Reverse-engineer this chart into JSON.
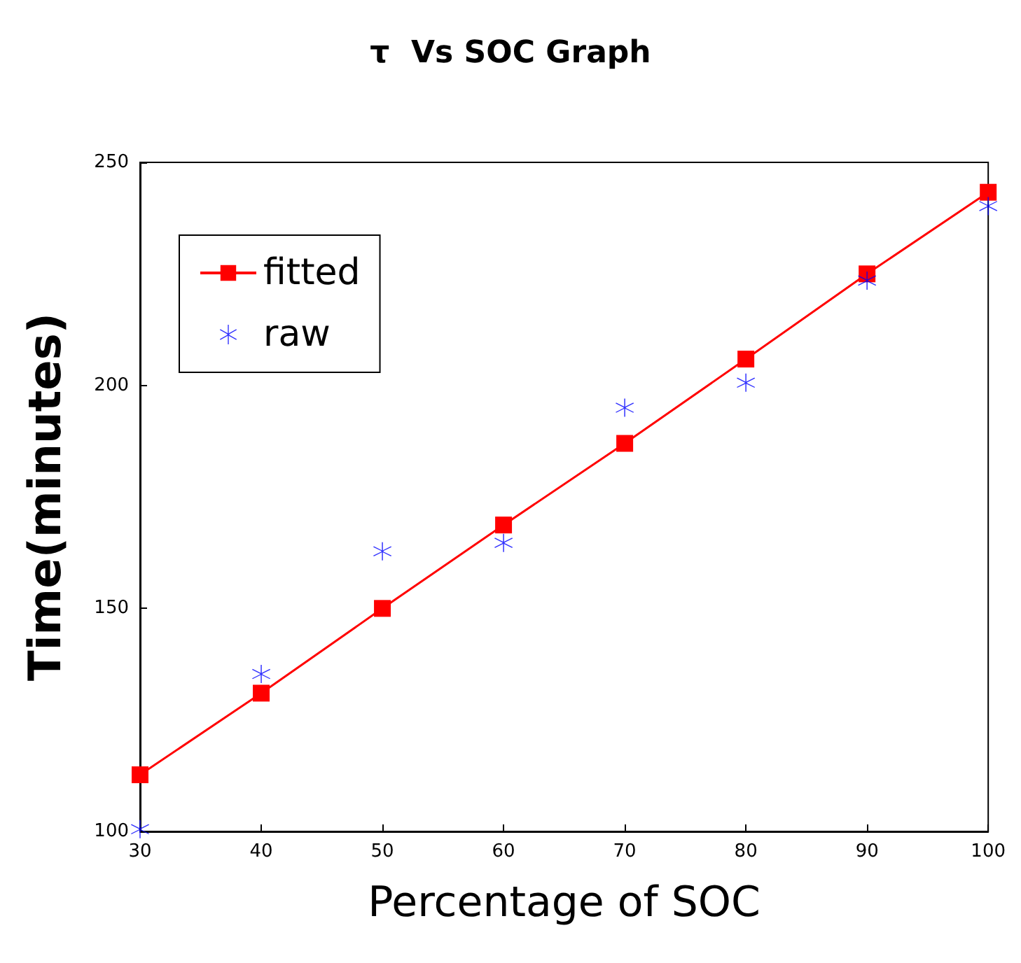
{
  "chart_data": {
    "type": "line",
    "title": "τ  Vs SOC Graph",
    "xlabel": "Percentage of SOC",
    "ylabel": "Time(minutes)",
    "x": [
      30,
      40,
      50,
      60,
      70,
      80,
      90,
      100
    ],
    "series": [
      {
        "name": "fitted",
        "color": "#ff0000",
        "marker": "square",
        "line_style": "solid",
        "values": [
          112.7,
          131,
          150,
          168.7,
          187,
          205.9,
          225,
          243.3
        ]
      },
      {
        "name": "raw",
        "type": "scatter",
        "color": "#0000ff",
        "marker": "star",
        "values": [
          100.5,
          135.3,
          162.8,
          164.7,
          195,
          200.6,
          223.5,
          240.2
        ]
      }
    ],
    "xlim": [
      30,
      100
    ],
    "xticks": [
      30,
      40,
      50,
      60,
      70,
      80,
      90,
      100
    ],
    "ylim": [
      100,
      250
    ],
    "yticks": [
      100,
      150,
      200,
      250
    ],
    "grid": false,
    "legend": "top left"
  }
}
